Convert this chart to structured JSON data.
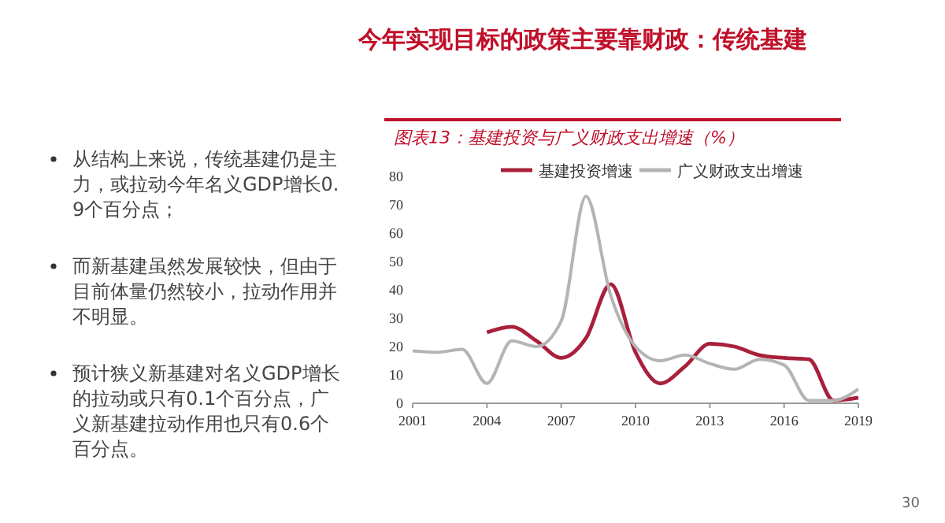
{
  "chart_data": {
    "type": "line",
    "title": "今年实现目标的政策主要靠财政：传统基建",
    "subtitle": "图表13：基建投资与广义财政支出增速（%）",
    "x": [
      2001,
      2002,
      2003,
      2004,
      2005,
      2006,
      2007,
      2008,
      2009,
      2010,
      2011,
      2012,
      2013,
      2014,
      2015,
      2016,
      2017,
      2018,
      2019
    ],
    "series": [
      {
        "name": "基建投资增速",
        "color": "#a8203a",
        "values": [
          null,
          null,
          null,
          25,
          27,
          22,
          16,
          23,
          42,
          18,
          7,
          13,
          21,
          20,
          17,
          16,
          15.5,
          1,
          2
        ]
      },
      {
        "name": "广义财政支出增速",
        "color": "#b4b4b4",
        "values": [
          18.5,
          18,
          19,
          7,
          22,
          20,
          29,
          73,
          38,
          20,
          15,
          17,
          14,
          12,
          15.5,
          13.5,
          1,
          1,
          5
        ]
      }
    ],
    "xlim": [
      2001,
      2019
    ],
    "xticks": [
      2001,
      2004,
      2007,
      2010,
      2013,
      2016,
      2019
    ],
    "ylim": [
      0,
      80
    ],
    "yticks": [
      0,
      10,
      20,
      30,
      40,
      50,
      60,
      70,
      80
    ],
    "grid": false,
    "legend": "top",
    "marker": "none",
    "line_style": "solid",
    "annotations": [
      "从结构上来说，传统基建仍是主力，或拉动今年名义GDP增长0.9个百分点；",
      "而新基建虽然发展较快，但由于目前体量仍然较小，拉动作用并不明显。",
      "预计狭义新基建对名义GDP增长的拉动或只有0.1个百分点，广义新基建拉动作用也只有0.6个百分点。",
      "30"
    ]
  }
}
